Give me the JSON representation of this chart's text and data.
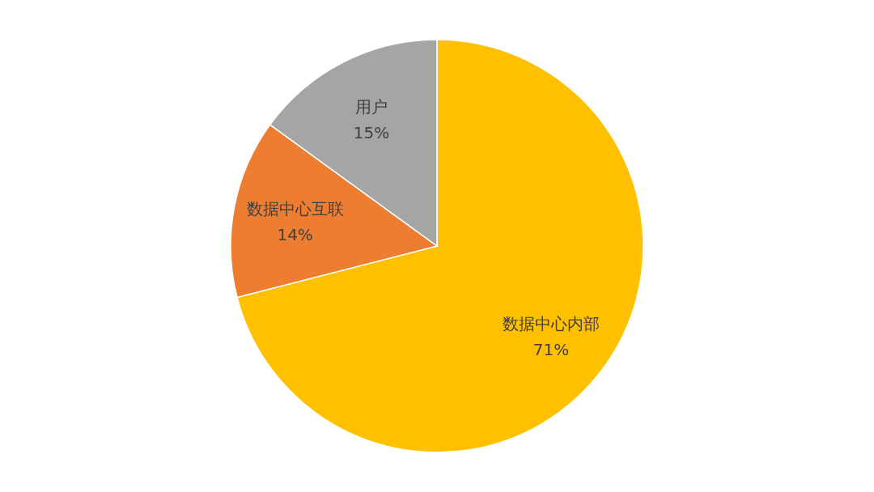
{
  "chart_data": {
    "type": "pie",
    "categories": [
      "数据中心内部",
      "数据中心互联",
      "用户"
    ],
    "values": [
      71,
      14,
      15
    ],
    "colors": [
      "#ffc000",
      "#ed7d31",
      "#a5a5a5"
    ],
    "value_labels": [
      "71%",
      "14%",
      "15%"
    ]
  }
}
